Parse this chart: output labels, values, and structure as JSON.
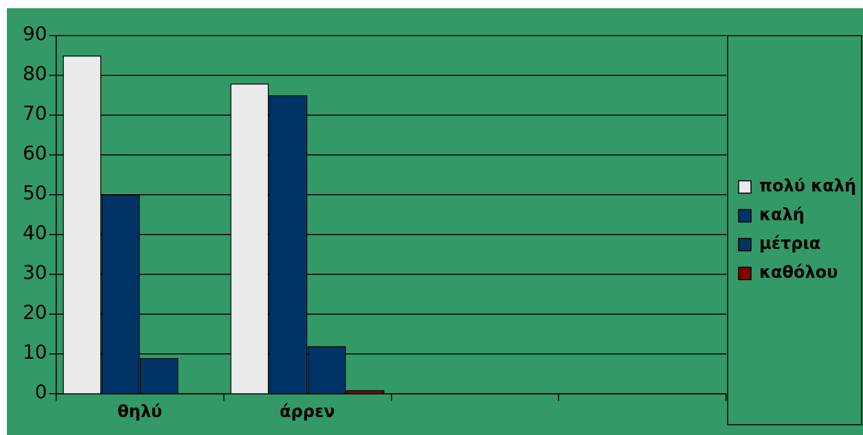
{
  "chart_data": {
    "type": "bar",
    "categories": [
      "θηλύ",
      "άρρεν",
      null,
      null
    ],
    "series": [
      {
        "name": "πολύ καλή",
        "color": "#eaeaea",
        "values": [
          85,
          78,
          null,
          null
        ]
      },
      {
        "name": "καλή",
        "color": "#003366",
        "values": [
          50,
          75,
          null,
          null
        ]
      },
      {
        "name": "μέτρια",
        "color": "#003366",
        "values": [
          9,
          12,
          null,
          null
        ]
      },
      {
        "name": "καθόλου",
        "color": "#800000",
        "values": [
          0,
          1,
          null,
          null
        ]
      }
    ],
    "ylim": [
      0,
      90
    ],
    "yticks": [
      0,
      10,
      20,
      30,
      40,
      50,
      60,
      70,
      80,
      90
    ],
    "grid": "y",
    "legend": "right"
  }
}
